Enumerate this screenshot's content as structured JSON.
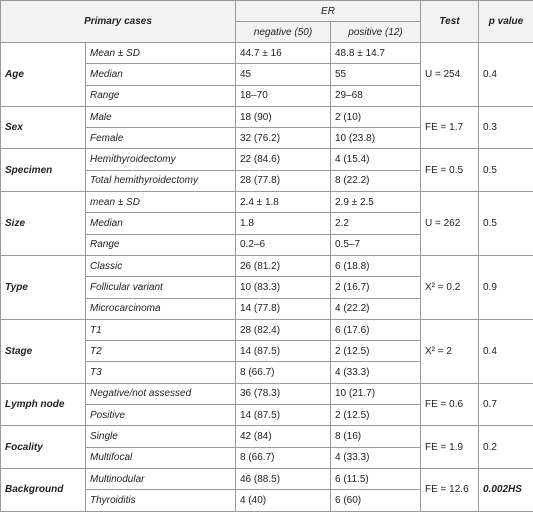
{
  "header": {
    "primary_cases": "Primary cases",
    "er": "ER",
    "negative": "negative (50)",
    "positive": "positive (12)",
    "test": "Test",
    "p_value": "p value"
  },
  "groups": [
    {
      "label": "Age",
      "rows": [
        {
          "name": "Mean ± SD",
          "negative": "44.7 ± 16",
          "positive": "48.8 ± 14.7"
        },
        {
          "name": "Median",
          "negative": "45",
          "positive": "55"
        },
        {
          "name": "Range",
          "negative": "18–70",
          "positive": "29–68"
        }
      ],
      "test": "U = 254",
      "p": "0.4"
    },
    {
      "label": "Sex",
      "rows": [
        {
          "name": "Male",
          "negative": "18 (90)",
          "positive": "2 (10)"
        },
        {
          "name": "Female",
          "negative": "32 (76.2)",
          "positive": "10 (23.8)"
        }
      ],
      "test": "FE = 1.7",
      "p": "0.3"
    },
    {
      "label": "Specimen",
      "rows": [
        {
          "name": "Hemithyroidectomy",
          "negative": "22 (84.6)",
          "positive": "4 (15.4)"
        },
        {
          "name": "Total hemithyroidectomy",
          "negative": "28 (77.8)",
          "positive": "8 (22.2)"
        }
      ],
      "test": "FE = 0.5",
      "p": "0.5"
    },
    {
      "label": "Size",
      "rows": [
        {
          "name": "mean ± SD",
          "negative": "2.4 ± 1.8",
          "positive": "2.9 ± 2.5"
        },
        {
          "name": "Median",
          "negative": "1.8",
          "positive": "2.2"
        },
        {
          "name": "Range",
          "negative": "0.2–6",
          "positive": "0.5–7"
        }
      ],
      "test": "U = 262",
      "p": "0.5"
    },
    {
      "label": "Type",
      "rows": [
        {
          "name": "Classic",
          "negative": "26 (81.2)",
          "positive": "6 (18.8)"
        },
        {
          "name": "Follicular variant",
          "negative": "10 (83.3)",
          "positive": "2 (16.7)"
        },
        {
          "name": "Microcarcinoma",
          "negative": "14 (77.8)",
          "positive": "4 (22.2)"
        }
      ],
      "test": "X² = 0.2",
      "p": "0.9"
    },
    {
      "label": "Stage",
      "rows": [
        {
          "name": "T1",
          "negative": "28 (82.4)",
          "positive": "6 (17.6)"
        },
        {
          "name": "T2",
          "negative": "14 (87.5)",
          "positive": "2 (12.5)"
        },
        {
          "name": "T3",
          "negative": "8 (66.7)",
          "positive": "4 (33.3)"
        }
      ],
      "test": "X² = 2",
      "p": "0.4"
    },
    {
      "label": "Lymph node",
      "rows": [
        {
          "name": "Negative/not assessed",
          "negative": "36 (78.3)",
          "positive": "10 (21.7)"
        },
        {
          "name": "Positive",
          "negative": "14 (87.5)",
          "positive": "2 (12.5)"
        }
      ],
      "test": "FE = 0.6",
      "p": "0.7"
    },
    {
      "label": "Focality",
      "rows": [
        {
          "name": "Single",
          "negative": "42 (84)",
          "positive": "8 (16)"
        },
        {
          "name": "Multifocal",
          "negative": "8 (66.7)",
          "positive": "4 (33.3)"
        }
      ],
      "test": "FE = 1.9",
      "p": "0.2"
    },
    {
      "label": "Background",
      "rows": [
        {
          "name": "Multinodular",
          "negative": "46 (88.5)",
          "positive": "6 (11.5)"
        },
        {
          "name": "Thyroiditis",
          "negative": "4 (40)",
          "positive": "6 (60)"
        }
      ],
      "test": "FE = 12.6",
      "p": "0.002HS"
    }
  ]
}
